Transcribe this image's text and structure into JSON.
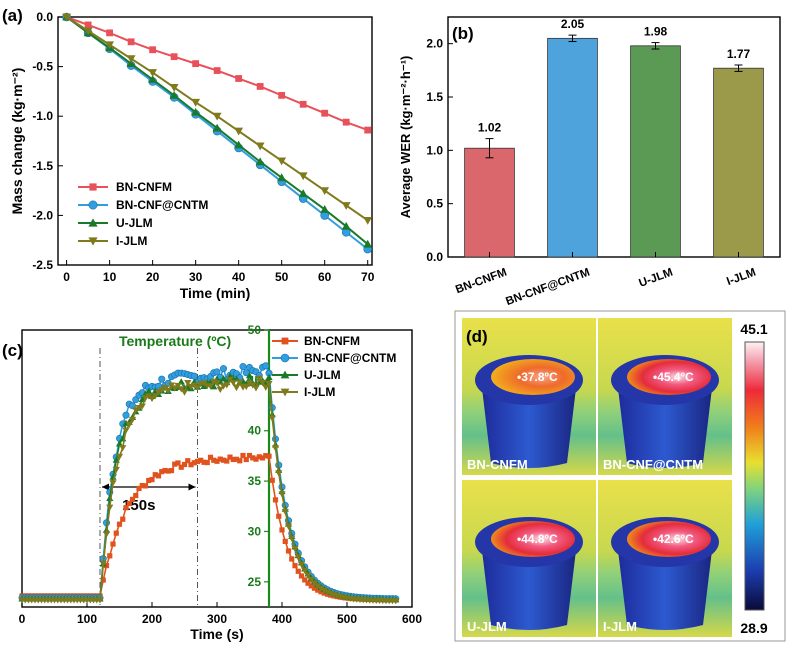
{
  "panel_letters": {
    "a": "(a)",
    "b": "(b)",
    "c": "(c)",
    "d": "(d)"
  },
  "chart_data": [
    {
      "id": "a",
      "type": "line",
      "xlabel": "Time (min)",
      "ylabel": "Mass change (kg·m⁻²)",
      "xlim": [
        -2,
        71
      ],
      "ylim": [
        -2.5,
        0.0
      ],
      "xticks": [
        0,
        10,
        20,
        30,
        40,
        50,
        60,
        70
      ],
      "yticks": [
        0.0,
        -0.5,
        -1.0,
        -1.5,
        -2.0,
        -2.5
      ],
      "ytick_labels": [
        "0.0",
        "-0.5",
        "-1.0",
        "-1.5",
        "-2.0",
        "-2.5"
      ],
      "legend_position": "bottom-left",
      "x": [
        0,
        5,
        10,
        15,
        20,
        25,
        30,
        35,
        40,
        45,
        50,
        55,
        60,
        65,
        70
      ],
      "series": [
        {
          "name": "BN-CNFM",
          "color": "#e8515a",
          "marker": "square",
          "values": [
            0,
            -0.08,
            -0.16,
            -0.25,
            -0.33,
            -0.4,
            -0.47,
            -0.54,
            -0.62,
            -0.7,
            -0.79,
            -0.88,
            -0.97,
            -1.06,
            -1.14
          ]
        },
        {
          "name": "BN-CNF@CNTM",
          "color": "#2f9fe0",
          "marker": "circle",
          "values": [
            0,
            -0.16,
            -0.32,
            -0.49,
            -0.65,
            -0.81,
            -0.98,
            -1.15,
            -1.32,
            -1.49,
            -1.66,
            -1.83,
            -2.0,
            -2.17,
            -2.34
          ]
        },
        {
          "name": "U-JLM",
          "color": "#1a7a2a",
          "marker": "triangle-up",
          "values": [
            0,
            -0.16,
            -0.31,
            -0.47,
            -0.63,
            -0.79,
            -0.96,
            -1.12,
            -1.29,
            -1.46,
            -1.62,
            -1.78,
            -1.94,
            -2.11,
            -2.29
          ]
        },
        {
          "name": "I-JLM",
          "color": "#7f7a1c",
          "marker": "triangle-down",
          "values": [
            0,
            -0.14,
            -0.28,
            -0.42,
            -0.56,
            -0.71,
            -0.86,
            -1.0,
            -1.15,
            -1.3,
            -1.45,
            -1.6,
            -1.75,
            -1.9,
            -2.05
          ]
        }
      ]
    },
    {
      "id": "b",
      "type": "bar",
      "ylabel": "Average WER (kg·m⁻²·h⁻¹)",
      "ylim": [
        0.0,
        2.25
      ],
      "yticks": [
        0.0,
        0.5,
        1.0,
        1.5,
        2.0
      ],
      "ytick_labels": [
        "0.0",
        "0.5",
        "1.0",
        "1.5",
        "2.0"
      ],
      "categories": [
        "BN-CNFM",
        "BN-CNF@CNTM",
        "U-JLM",
        "I-JLM"
      ],
      "values": [
        1.02,
        2.05,
        1.98,
        1.77
      ],
      "value_labels": [
        "1.02",
        "2.05",
        "1.98",
        "1.77"
      ],
      "errors": [
        0.09,
        0.03,
        0.03,
        0.03
      ],
      "colors": [
        "#d9676b",
        "#4fa3dc",
        "#5a9a55",
        "#9a9a4a"
      ]
    },
    {
      "id": "c",
      "type": "line",
      "xlabel": "Time (s)",
      "annotation_title": "Temperature (ºC)",
      "annotation_interval": "150s",
      "xlim": [
        0,
        600
      ],
      "ylim": [
        22.5,
        50
      ],
      "xticks": [
        0,
        100,
        200,
        300,
        400,
        500,
        600
      ],
      "yticks": [
        25,
        30,
        35,
        40,
        45,
        50
      ],
      "axis_marker_x": 380,
      "interval_marks": [
        120,
        270,
        380
      ],
      "legend_position": "top-right",
      "series": [
        {
          "name": "BN-CNFM",
          "color": "#e0531f",
          "marker": "square"
        },
        {
          "name": "BN-CNF@CNTM",
          "color": "#2f9fe0",
          "marker": "circle"
        },
        {
          "name": "U-JLM",
          "color": "#1a7a2a",
          "marker": "triangle-up"
        },
        {
          "name": "I-JLM",
          "color": "#7f7a1c",
          "marker": "triangle-down"
        }
      ],
      "profiles": [
        {
          "base": 23.6,
          "rise_end": 37.0,
          "end": 37.4,
          "fall_to": 23.2,
          "noise": 0.3,
          "tau_rise": 40
        },
        {
          "base": 23.4,
          "rise_end": 44.6,
          "end": 46.0,
          "fall_to": 23.3,
          "noise": 0.6,
          "tau_rise": 22
        },
        {
          "base": 23.3,
          "rise_end": 44.2,
          "end": 45.2,
          "fall_to": 23.2,
          "noise": 0.5,
          "tau_rise": 24
        },
        {
          "base": 23.2,
          "rise_end": 44.0,
          "end": 44.8,
          "fall_to": 23.1,
          "noise": 0.5,
          "tau_rise": 26
        }
      ]
    }
  ],
  "thermal_panel": {
    "colorbar_max": "45.1",
    "colorbar_min": "28.9",
    "images": [
      {
        "label": "BN-CNFM",
        "temp": "37.8ºC",
        "hot": 0.55
      },
      {
        "label": "BN-CNF@CNTM",
        "temp": "45.4ºC",
        "hot": 1.0
      },
      {
        "label": "U-JLM",
        "temp": "44.8ºC",
        "hot": 0.95
      },
      {
        "label": "I-JLM",
        "temp": "42.6ºC",
        "hot": 0.85
      }
    ]
  }
}
